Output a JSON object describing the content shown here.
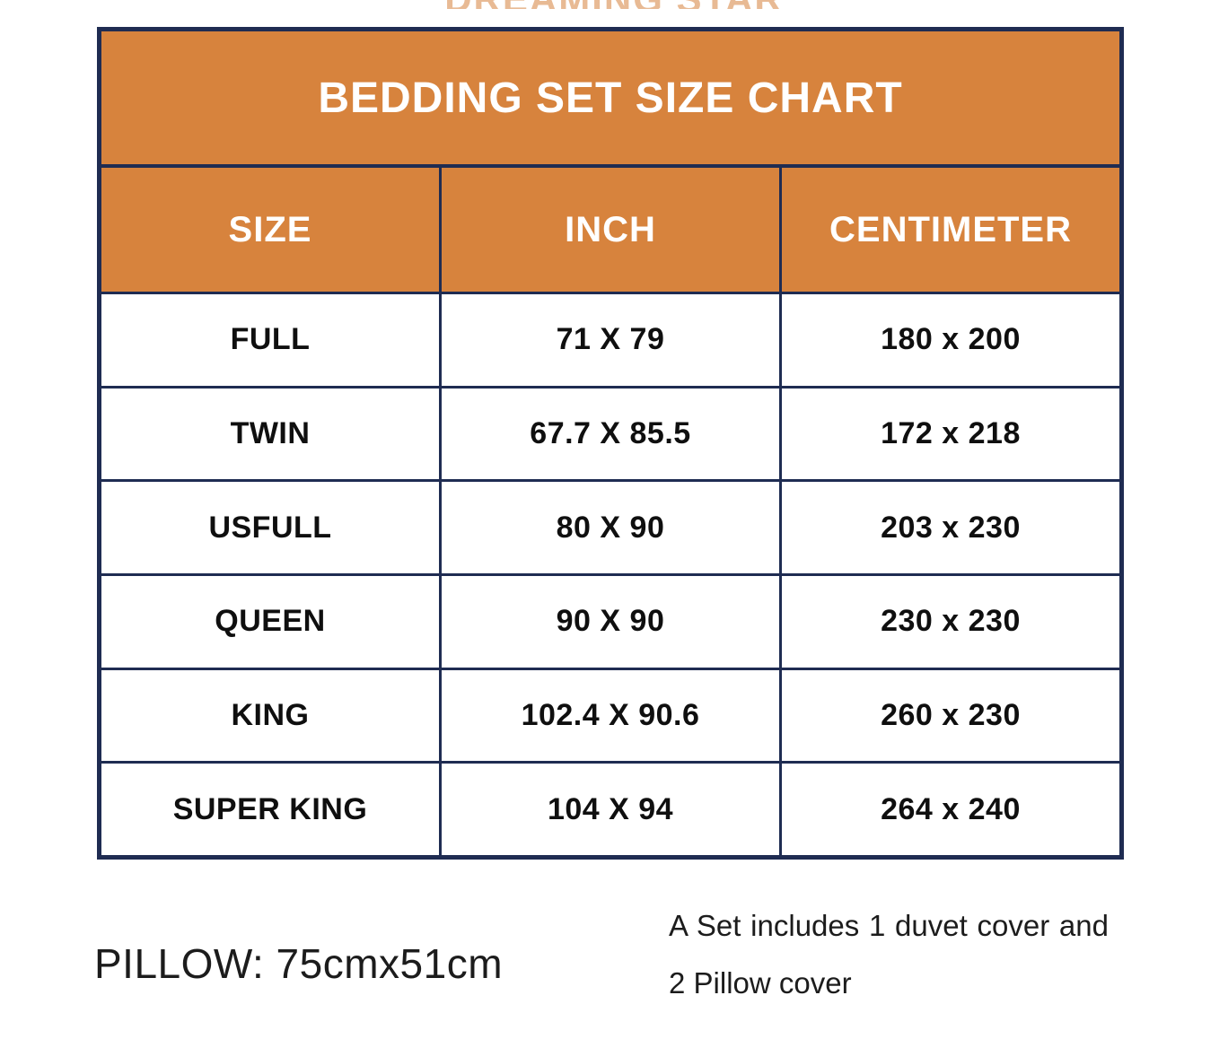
{
  "brand": {
    "cropped_text": "DREAMING STAR"
  },
  "chart_data": {
    "type": "table",
    "title": "BEDDING SET SIZE CHART",
    "columns": [
      "SIZE",
      "INCH",
      "CENTIMETER"
    ],
    "rows": [
      [
        "FULL",
        "71 X 79",
        "180 x 200"
      ],
      [
        "TWIN",
        "67.7 X 85.5",
        "172 x 218"
      ],
      [
        "USFULL",
        "80 X 90",
        "203 x 230"
      ],
      [
        "QUEEN",
        "90 X 90",
        "230 x 230"
      ],
      [
        "KING",
        "102.4 X 90.6",
        "260 x 230"
      ],
      [
        "SUPER KING",
        "104 X 94",
        "264 x 240"
      ]
    ],
    "layout_hints": {
      "header_background": "#D7833D",
      "border_color": "#1F2C52",
      "grid": true
    }
  },
  "footer": {
    "pillow_label": "PILLOW: 75cmx51cm",
    "set_note": "A Set includes 1 duvet cover and 2 Pillow cover"
  },
  "colors": {
    "accent_orange": "#D7833D",
    "border_navy": "#1F2C52",
    "title_text": "#FFFFFF",
    "cell_text": "#0F0F0F"
  }
}
